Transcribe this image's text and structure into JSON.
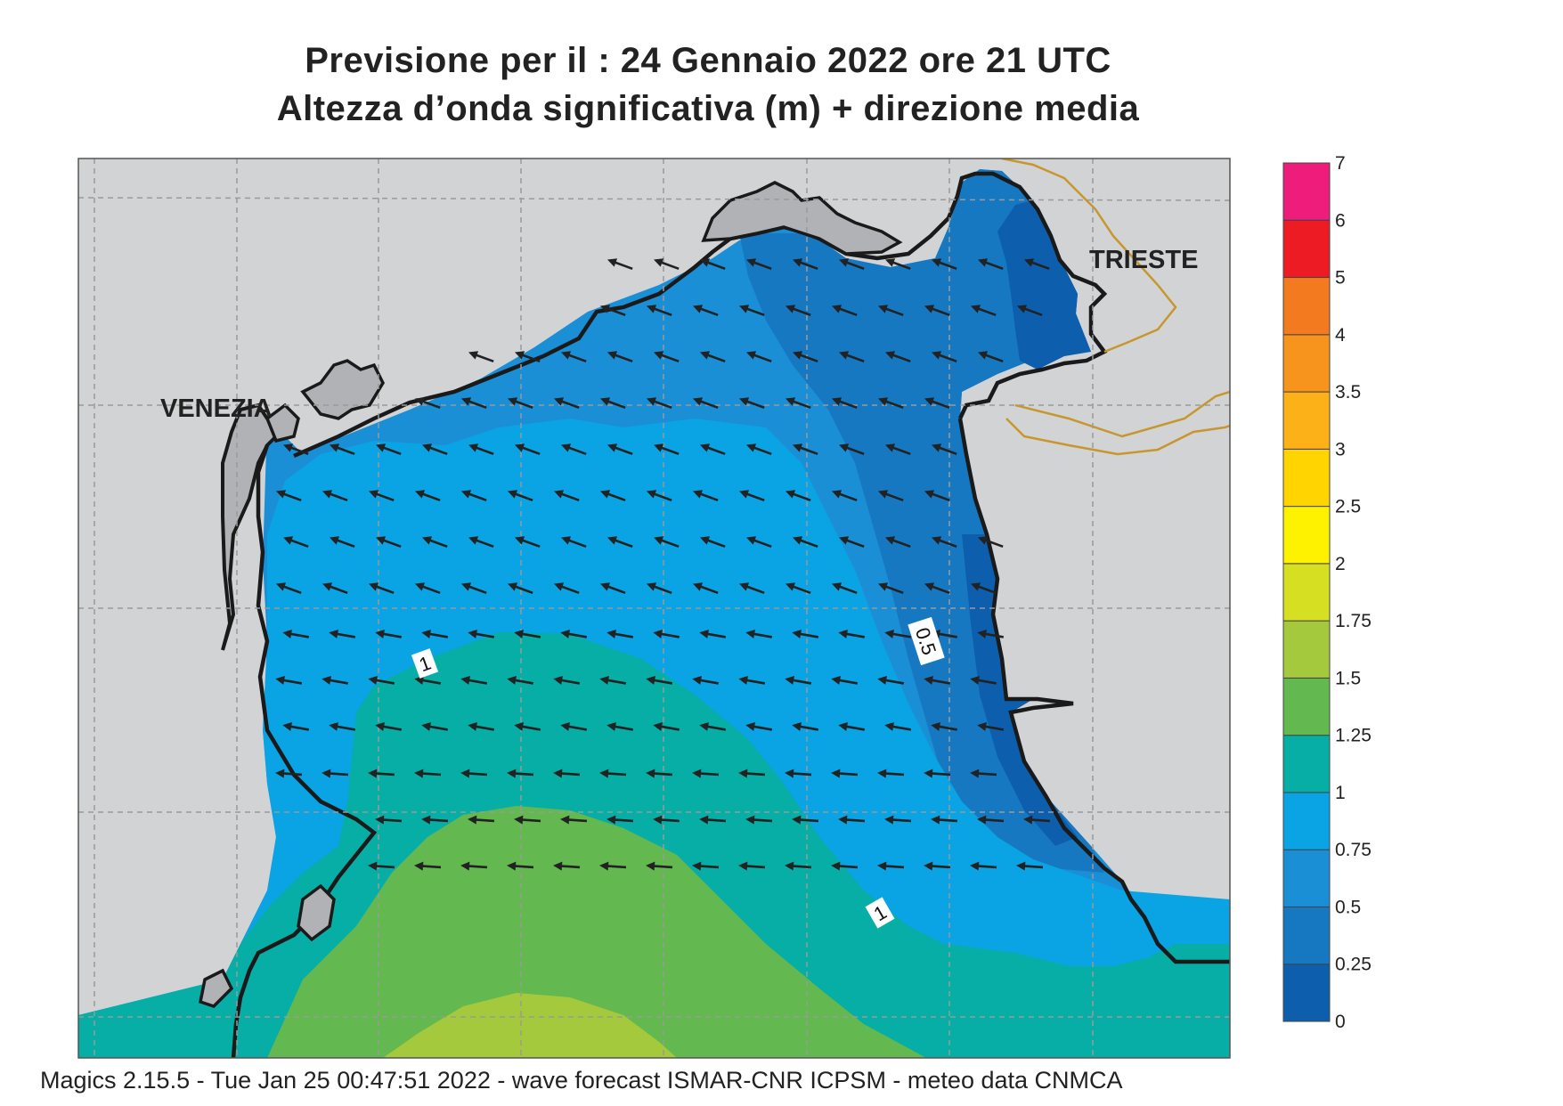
{
  "header": {
    "title_line1": "Previsione per il  :  24  Gennaio  2022   ore 21 UTC",
    "title_line2": "Altezza d’onda significativa (m) + direzione media"
  },
  "map": {
    "places": [
      {
        "name": "VENEZIA"
      },
      {
        "name": "TRIESTE"
      }
    ],
    "contour_labels": [
      "1",
      "0.5",
      "1"
    ],
    "mean_wave_direction": "from east-southeast, pointing west-northwest",
    "land_color": "#d2d3d5",
    "border_color": "#c8962e"
  },
  "legend": {
    "unit": "m",
    "ticks": [
      "0",
      "0.25",
      "0.5",
      "0.75",
      "1",
      "1.25",
      "1.5",
      "1.75",
      "2",
      "2.5",
      "3",
      "3.5",
      "4",
      "5",
      "6",
      "7"
    ],
    "colors": [
      "#0d5fae",
      "#1778c2",
      "#1b8fd6",
      "#0aa3e3",
      "#06aea6",
      "#63b94f",
      "#a4c93c",
      "#d6df22",
      "#fff200",
      "#ffd400",
      "#fbb117",
      "#f7941d",
      "#f47a20",
      "#ed1c24",
      "#ee1c7b"
    ]
  },
  "footer": {
    "text": "Magics 2.15.5 - Tue Jan 25 00:47:51 2022 - wave forecast  ISMAR-CNR  ICPSM - meteo data   CNMCA"
  }
}
